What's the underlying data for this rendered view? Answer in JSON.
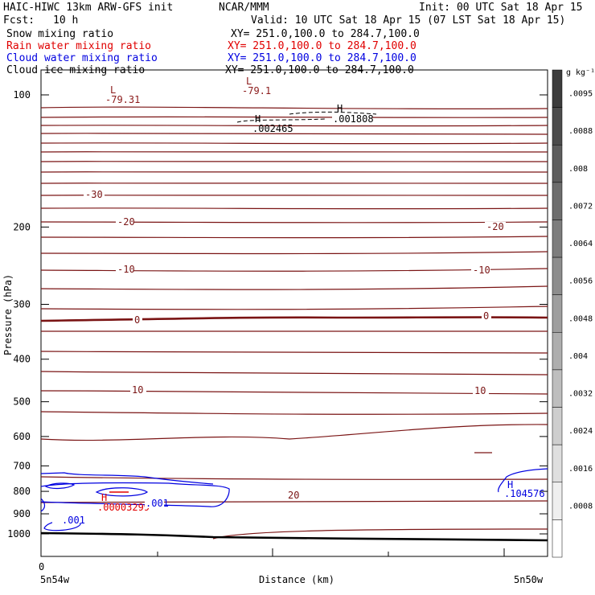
{
  "header": {
    "title": "HAIC-HIWC 13km ARW-GFS init",
    "org": "NCAR/MMM",
    "init": "Init: 00 UTC Sat 18 Apr 15",
    "fcst_label": "Fcst:",
    "fcst_value": "10 h",
    "valid": "Valid: 10 UTC Sat 18 Apr 15 (07 LST Sat 18 Apr 15)"
  },
  "fields": [
    {
      "name": "Snow mixing ratio",
      "xy": "XY= 251.0,100.0 to 284.7,100.0",
      "color": "#000000"
    },
    {
      "name": "Rain water mixing ratio",
      "xy": "XY= 251.0,100.0 to 284.7,100.0",
      "color": "#e00000"
    },
    {
      "name": "Cloud water mixing ratio",
      "xy": "XY= 251.0,100.0 to 284.7,100.0",
      "color": "#0000e0"
    },
    {
      "name": "Cloud ice mixing ratio",
      "xy": "XY= 251.0,100.0 to 284.7,100.0",
      "color": "#000000"
    }
  ],
  "chart_data": {
    "type": "contour-cross-section",
    "xlabel": "Distance (km)",
    "ylabel": "Pressure (hPa)",
    "x_tick_labels": [
      "0"
    ],
    "x_end_labels": [
      "5n54w",
      "5n50w"
    ],
    "y_ticks": [
      100,
      200,
      300,
      400,
      500,
      600,
      700,
      800,
      900,
      1000
    ],
    "yscale": "log",
    "temperature_contour_labels": [
      "-30",
      "-20",
      "-20",
      "-10",
      "-10",
      "0",
      "0",
      "10",
      "10",
      "20"
    ],
    "extrema": [
      {
        "symbol": "L",
        "value": "-79.31",
        "color": "#8b1a1a"
      },
      {
        "symbol": "L",
        "value": "-79.1",
        "color": "#8b1a1a"
      },
      {
        "symbol": "H",
        "value": ".001808",
        "color": "#000000"
      },
      {
        "symbol": "H",
        "value": ".002465",
        "color": "#000000"
      },
      {
        "symbol": "H",
        "value": ".00003299",
        "color": "#e00000"
      },
      {
        "symbol": "H",
        "value": ".104576",
        "color": "#0000e0"
      }
    ],
    "cloud_water_contour_labels": [
      ".001",
      ".001"
    ],
    "colorbar": {
      "unit": "g kg⁻¹",
      "labels": [
        ".0095",
        ".0088",
        ".008",
        ".0072",
        ".0064",
        ".0056",
        ".0048",
        ".004",
        ".0032",
        ".0024",
        ".0016",
        ".0008"
      ]
    }
  }
}
